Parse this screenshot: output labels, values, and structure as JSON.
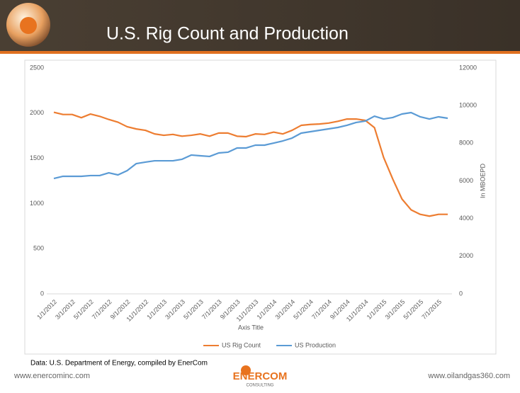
{
  "header": {
    "title": "U.S. Rig Count and Production"
  },
  "chart_data": {
    "type": "line",
    "x_label": "Axis Title",
    "y2_label": "In MBOEPD",
    "categories": [
      "1/1/2012",
      null,
      "3/1/2012",
      null,
      "5/1/2012",
      null,
      "7/1/2012",
      null,
      "9/1/2012",
      null,
      "11/1/2012",
      null,
      "1/1/2013",
      null,
      "3/1/2013",
      null,
      "5/1/2013",
      null,
      "7/1/2013",
      null,
      "9/1/2013",
      null,
      "11/1/2013",
      null,
      "1/1/2014",
      null,
      "3/1/2014",
      null,
      "5/1/2014",
      null,
      "7/1/2014",
      null,
      "9/1/2014",
      null,
      "11/1/2014",
      null,
      "1/1/2015",
      null,
      "3/1/2015",
      null,
      "5/1/2015",
      null,
      "7/1/2015",
      null
    ],
    "series": [
      {
        "name": "US Rig Count",
        "color": "#ed7d31",
        "axis": "y",
        "values": [
          2010,
          1985,
          1985,
          1950,
          1990,
          1965,
          1930,
          1900,
          1850,
          1825,
          1810,
          1770,
          1755,
          1765,
          1745,
          1755,
          1770,
          1745,
          1780,
          1780,
          1745,
          1740,
          1770,
          1765,
          1790,
          1770,
          1810,
          1865,
          1875,
          1880,
          1890,
          1910,
          1935,
          1935,
          1920,
          1840,
          1510,
          1270,
          1050,
          930,
          880,
          860,
          880,
          880
        ]
      },
      {
        "name": "US Production",
        "color": "#5b9bd5",
        "axis": "y2",
        "values": [
          6130,
          6245,
          6245,
          6245,
          6285,
          6285,
          6430,
          6320,
          6545,
          6920,
          7000,
          7070,
          7070,
          7070,
          7150,
          7375,
          7335,
          7300,
          7485,
          7525,
          7750,
          7750,
          7900,
          7900,
          8010,
          8125,
          8275,
          8540,
          8615,
          8690,
          8765,
          8840,
          8955,
          9105,
          9180,
          9440,
          9290,
          9370,
          9555,
          9630,
          9405,
          9290,
          9405,
          9330
        ]
      }
    ],
    "ylim": [
      0,
      2500
    ],
    "yticks": [
      0,
      500,
      1000,
      1500,
      2000,
      2500
    ],
    "y2lim": [
      0,
      12000
    ],
    "y2ticks": [
      0,
      2000,
      4000,
      6000,
      8000,
      10000,
      12000
    ],
    "grid": false,
    "legend": "bottom"
  },
  "source": "Data: U.S. Department of Energy, compiled by EnerCom",
  "footer": {
    "left": "www.enercominc.com",
    "right": "www.oilandgas360.com",
    "logo": "ENERCOM",
    "logo_sub": "CONSULTING"
  }
}
